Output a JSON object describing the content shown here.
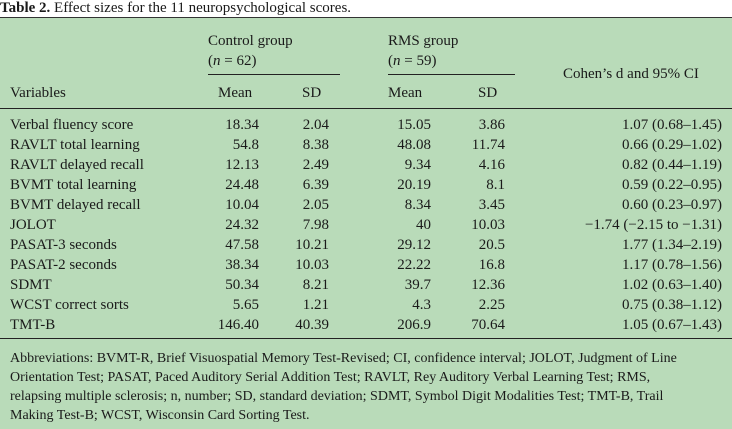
{
  "caption": {
    "label": "Table 2.",
    "text": "Effect sizes for the 11 neuropsychological scores."
  },
  "header": {
    "control_group": "Control group",
    "control_n": "(n = 62)",
    "rms_group": "RMS group",
    "rms_n": "(n = 59)",
    "effect": "Cohen’s d and 95% CI",
    "variables": "Variables",
    "mean": "Mean",
    "sd": "SD"
  },
  "rows": [
    {
      "variable": "Verbal fluency score",
      "c_mean": "18.34",
      "c_sd": "2.04",
      "r_mean": "15.05",
      "r_sd": "3.86",
      "d": "1.07 (0.68–1.45)"
    },
    {
      "variable": "RAVLT total learning",
      "c_mean": "54.8",
      "c_sd": "8.38",
      "r_mean": "48.08",
      "r_sd": "11.74",
      "d": "0.66 (0.29–1.02)"
    },
    {
      "variable": "RAVLT delayed recall",
      "c_mean": "12.13",
      "c_sd": "2.49",
      "r_mean": "9.34",
      "r_sd": "4.16",
      "d": "0.82 (0.44–1.19)"
    },
    {
      "variable": "BVMT total learning",
      "c_mean": "24.48",
      "c_sd": "6.39",
      "r_mean": "20.19",
      "r_sd": "8.1",
      "d": "0.59 (0.22–0.95)"
    },
    {
      "variable": "BVMT delayed recall",
      "c_mean": "10.04",
      "c_sd": "2.05",
      "r_mean": "8.34",
      "r_sd": "3.45",
      "d": "0.60 (0.23–0.97)"
    },
    {
      "variable": "JOLOT",
      "c_mean": "24.32",
      "c_sd": "7.98",
      "r_mean": "40",
      "r_sd": "10.03",
      "d": "−1.74 (−2.15 to −1.31)"
    },
    {
      "variable": "PASAT-3 seconds",
      "c_mean": "47.58",
      "c_sd": "10.21",
      "r_mean": "29.12",
      "r_sd": "20.5",
      "d": "1.77 (1.34–2.19)"
    },
    {
      "variable": "PASAT-2 seconds",
      "c_mean": "38.34",
      "c_sd": "10.03",
      "r_mean": "22.22",
      "r_sd": "16.8",
      "d": "1.17 (0.78–1.56)"
    },
    {
      "variable": "SDMT",
      "c_mean": "50.34",
      "c_sd": "8.21",
      "r_mean": "39.7",
      "r_sd": "12.36",
      "d": "1.02 (0.63–1.40)"
    },
    {
      "variable": "WCST correct sorts",
      "c_mean": "5.65",
      "c_sd": "1.21",
      "r_mean": "4.3",
      "r_sd": "2.25",
      "d": "0.75 (0.38–1.12)"
    },
    {
      "variable": "TMT-B",
      "c_mean": "146.40",
      "c_sd": "40.39",
      "r_mean": "206.9",
      "r_sd": "70.64",
      "d": "1.05 (0.67–1.43)"
    }
  ],
  "footnote": {
    "line1": "Abbreviations: BVMT-R, Brief Visuospatial Memory Test-Revised; CI, confidence interval; JOLOT, Judgment of Line",
    "line2": "Orientation Test; PASAT, Paced Auditory Serial Addition Test; RAVLT, Rey Auditory Verbal Learning Test; RMS,",
    "line3": "relapsing multiple sclerosis; n, number; SD, standard deviation; SDMT, Symbol Digit Modalities Test; TMT-B, Trail",
    "line4": "Making Test-B; WCST, Wisconsin Card Sorting Test."
  }
}
